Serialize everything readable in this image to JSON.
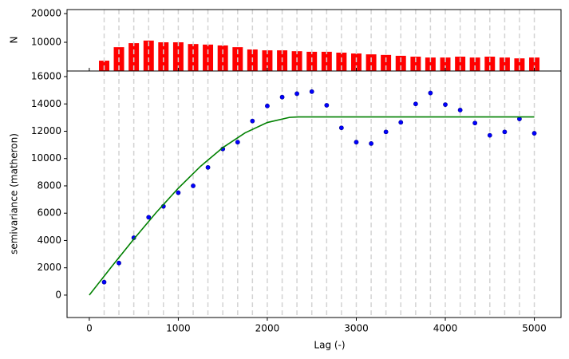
{
  "chart_data": [
    {
      "type": "bar",
      "ylabel": "N",
      "color": "#ff0000",
      "x": [
        167,
        333,
        500,
        667,
        833,
        1000,
        1167,
        1333,
        1500,
        1667,
        1833,
        2000,
        2167,
        2333,
        2500,
        2667,
        2833,
        3000,
        3167,
        3333,
        3500,
        3667,
        3833,
        4000,
        4167,
        4333,
        4500,
        4667,
        4833,
        5000
      ],
      "values": [
        3600,
        8300,
        9700,
        10600,
        10000,
        10000,
        9400,
        9200,
        8900,
        8300,
        7500,
        7200,
        7200,
        6900,
        6700,
        6700,
        6400,
        6100,
        5800,
        5600,
        5300,
        5000,
        4700,
        4700,
        5000,
        4700,
        5000,
        4700,
        4400,
        4700
      ],
      "xlim": [
        -250,
        5300
      ],
      "ylim": [
        0,
        21400
      ],
      "yticks": [
        10000,
        20000
      ]
    },
    {
      "type": "scatter",
      "xlabel": "Lag (-)",
      "ylabel": "semivariance (matheron)",
      "xlim": [
        -250,
        5300
      ],
      "ylim": [
        -1640,
        16410
      ],
      "xticks": [
        0,
        1000,
        2000,
        3000,
        4000,
        5000
      ],
      "yticks": [
        0,
        2000,
        4000,
        6000,
        8000,
        10000,
        12000,
        14000,
        16000
      ],
      "series": [
        {
          "type": "scatter",
          "color": "#0000ff",
          "x": [
            167,
            333,
            500,
            667,
            833,
            1000,
            1167,
            1333,
            1500,
            1667,
            1833,
            2000,
            2167,
            2333,
            2500,
            2667,
            2833,
            3000,
            3167,
            3333,
            3500,
            3667,
            3833,
            4000,
            4167,
            4333,
            4500,
            4667,
            4833,
            5000
          ],
          "values": [
            950,
            2350,
            4200,
            5700,
            6500,
            7500,
            8000,
            9350,
            10700,
            11200,
            12750,
            13850,
            14500,
            14750,
            14900,
            13900,
            12250,
            11200,
            11100,
            11950,
            12650,
            14000,
            14800,
            13950,
            13550,
            12600,
            11700,
            11950,
            12900,
            11850
          ]
        },
        {
          "type": "line",
          "color": "#008000",
          "x": [
            0,
            250,
            500,
            750,
            1000,
            1250,
            1500,
            1750,
            2000,
            2250,
            2350,
            5000
          ],
          "values": [
            0,
            2075,
            4100,
            6035,
            7830,
            9430,
            10800,
            11880,
            12640,
            13015,
            13050,
            13050
          ]
        }
      ]
    }
  ]
}
